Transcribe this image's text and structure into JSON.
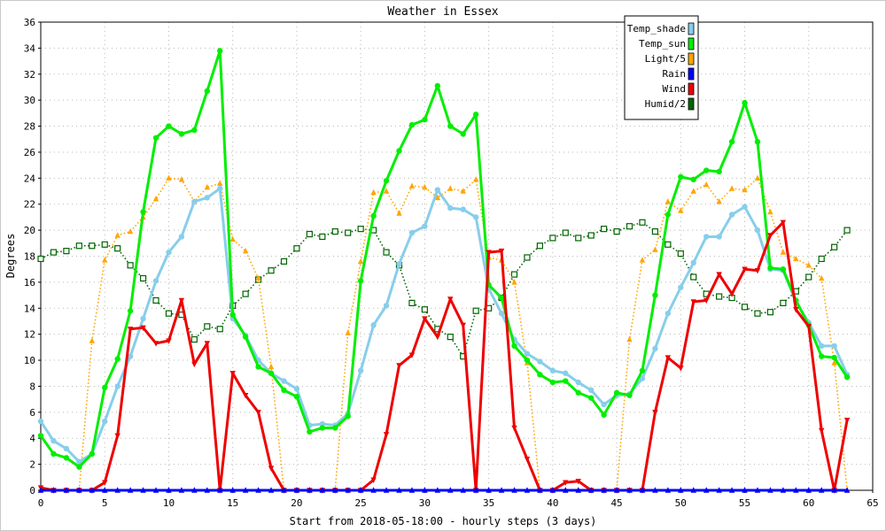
{
  "chart_data": {
    "type": "line",
    "title": "Weather in Essex",
    "xlabel": "Start from 2018-05-18:00 - hourly steps (3 days)",
    "ylabel": "Degrees",
    "xlim": [
      0,
      65
    ],
    "ylim": [
      0,
      36
    ],
    "xticks": [
      0,
      5,
      10,
      15,
      20,
      25,
      30,
      35,
      40,
      45,
      50,
      55,
      60,
      65
    ],
    "yticks": [
      0,
      2,
      4,
      6,
      8,
      10,
      12,
      14,
      16,
      18,
      20,
      22,
      24,
      26,
      28,
      30,
      32,
      34,
      36
    ],
    "grid": true,
    "legend_position": "top-right",
    "x": [
      0,
      1,
      2,
      3,
      4,
      5,
      6,
      7,
      8,
      9,
      10,
      11,
      12,
      13,
      14,
      15,
      16,
      17,
      18,
      19,
      20,
      21,
      22,
      23,
      24,
      25,
      26,
      27,
      28,
      29,
      30,
      31,
      32,
      33,
      34,
      35,
      36,
      37,
      38,
      39,
      40,
      41,
      42,
      43,
      44,
      45,
      46,
      47,
      48,
      49,
      50,
      51,
      52,
      53,
      54,
      55,
      56,
      57,
      58,
      59,
      60,
      61,
      62,
      63
    ],
    "series": [
      {
        "name": "Temp_shade",
        "color": "#87ceeb",
        "marker": "circle",
        "style": "solid",
        "values": [
          5.3,
          3.8,
          3.2,
          2.2,
          2.8,
          5.3,
          8.0,
          10.3,
          13.2,
          16.1,
          18.3,
          19.5,
          22.2,
          22.5,
          23.2,
          13.2,
          11.9,
          10.0,
          9.0,
          8.4,
          7.8,
          5.0,
          5.1,
          5.0,
          5.9,
          9.2,
          12.7,
          14.2,
          17.4,
          19.8,
          20.3,
          23.1,
          21.7,
          21.6,
          21.0,
          15.5,
          13.6,
          11.6,
          10.5,
          9.9,
          9.2,
          9.0,
          8.3,
          7.7,
          6.6,
          7.3,
          7.4,
          8.6,
          10.9,
          13.6,
          15.6,
          17.5,
          19.5,
          19.5,
          21.2,
          21.8,
          20.0,
          17.0,
          16.9,
          14.5,
          12.9,
          11.1,
          11.1,
          8.9
        ]
      },
      {
        "name": "Temp_sun",
        "color": "#00ee00",
        "marker": "circle",
        "style": "solid",
        "values": [
          4.2,
          2.8,
          2.5,
          1.8,
          2.8,
          7.9,
          10.1,
          13.8,
          21.4,
          27.1,
          28.0,
          27.4,
          27.7,
          30.7,
          33.8,
          13.5,
          11.8,
          9.5,
          9.0,
          7.7,
          7.2,
          4.5,
          4.8,
          4.8,
          5.7,
          16.1,
          21.1,
          23.8,
          26.1,
          28.1,
          28.5,
          31.1,
          28.0,
          27.4,
          28.9,
          15.8,
          14.8,
          11.1,
          10.0,
          8.9,
          8.3,
          8.4,
          7.5,
          7.1,
          5.8,
          7.5,
          7.3,
          9.2,
          15.0,
          21.2,
          24.1,
          23.9,
          24.6,
          24.5,
          26.8,
          29.8,
          26.8,
          17.1,
          17.0,
          14.6,
          12.7,
          10.3,
          10.2,
          8.7
        ]
      },
      {
        "name": "Light/5",
        "color": "#ffa500",
        "marker": "triangle-up",
        "style": "dotted",
        "values": [
          0,
          0,
          0,
          0,
          11.5,
          17.7,
          19.6,
          19.9,
          21.0,
          22.4,
          24.0,
          23.9,
          22.2,
          23.3,
          23.6,
          19.3,
          18.4,
          16.3,
          9.5,
          0,
          0,
          0,
          0,
          0,
          12.1,
          17.6,
          22.9,
          23.0,
          21.3,
          23.4,
          23.3,
          22.5,
          23.2,
          23.0,
          23.9,
          17.9,
          17.7,
          16.0,
          9.8,
          0,
          0,
          0,
          0,
          0,
          0,
          0,
          11.6,
          17.7,
          18.5,
          22.2,
          21.5,
          23.0,
          23.5,
          22.2,
          23.2,
          23.1,
          24.0,
          21.4,
          18.3,
          17.8,
          17.3,
          16.3,
          9.8,
          0
        ]
      },
      {
        "name": "Rain",
        "color": "#0000ff",
        "marker": "triangle-up",
        "style": "solid",
        "values": [
          0,
          0,
          0,
          0,
          0,
          0,
          0,
          0,
          0,
          0,
          0,
          0,
          0,
          0,
          0,
          0,
          0,
          0,
          0,
          0,
          0,
          0,
          0,
          0,
          0,
          0,
          0,
          0,
          0,
          0,
          0,
          0,
          0,
          0,
          0,
          0,
          0,
          0,
          0,
          0,
          0,
          0,
          0,
          0,
          0,
          0,
          0,
          0,
          0,
          0,
          0,
          0,
          0,
          0,
          0,
          0,
          0,
          0,
          0,
          0,
          0,
          0,
          0,
          0
        ]
      },
      {
        "name": "Wind",
        "color": "#ee0000",
        "marker": "triangle-down",
        "style": "solid",
        "values": [
          0.2,
          0,
          0,
          0,
          0,
          0.6,
          4.2,
          12.4,
          12.5,
          11.3,
          11.5,
          14.6,
          9.7,
          11.3,
          0,
          9.0,
          7.3,
          6.0,
          1.7,
          0,
          0,
          0,
          0,
          0,
          0,
          0,
          0.8,
          4.3,
          9.6,
          10.4,
          13.2,
          11.8,
          14.7,
          12.7,
          0,
          18.3,
          18.4,
          4.8,
          2.4,
          0,
          0,
          0.6,
          0.7,
          0,
          0,
          0,
          0,
          0,
          6.0,
          10.2,
          9.4,
          14.5,
          14.6,
          16.6,
          15.1,
          17.0,
          16.9,
          19.6,
          20.6,
          13.9,
          12.6,
          4.6,
          0,
          5.4
        ]
      },
      {
        "name": "Humid/2",
        "color": "#006400",
        "marker": "square",
        "style": "dotted",
        "values": [
          17.8,
          18.3,
          18.4,
          18.8,
          18.8,
          18.9,
          18.6,
          17.3,
          16.3,
          14.6,
          13.6,
          13.5,
          11.6,
          12.6,
          12.4,
          14.2,
          15.1,
          16.2,
          16.9,
          17.6,
          18.6,
          19.7,
          19.5,
          19.9,
          19.8,
          20.1,
          20.0,
          18.3,
          17.3,
          14.4,
          13.9,
          12.4,
          11.8,
          10.3,
          13.8,
          14.0,
          14.8,
          16.6,
          17.9,
          18.8,
          19.4,
          19.8,
          19.4,
          19.6,
          20.1,
          19.9,
          20.3,
          20.6,
          19.9,
          18.9,
          18.2,
          16.4,
          15.1,
          14.9,
          14.8,
          14.1,
          13.6,
          13.7,
          14.4,
          15.3,
          16.4,
          17.8,
          18.7,
          20.0
        ]
      }
    ]
  }
}
